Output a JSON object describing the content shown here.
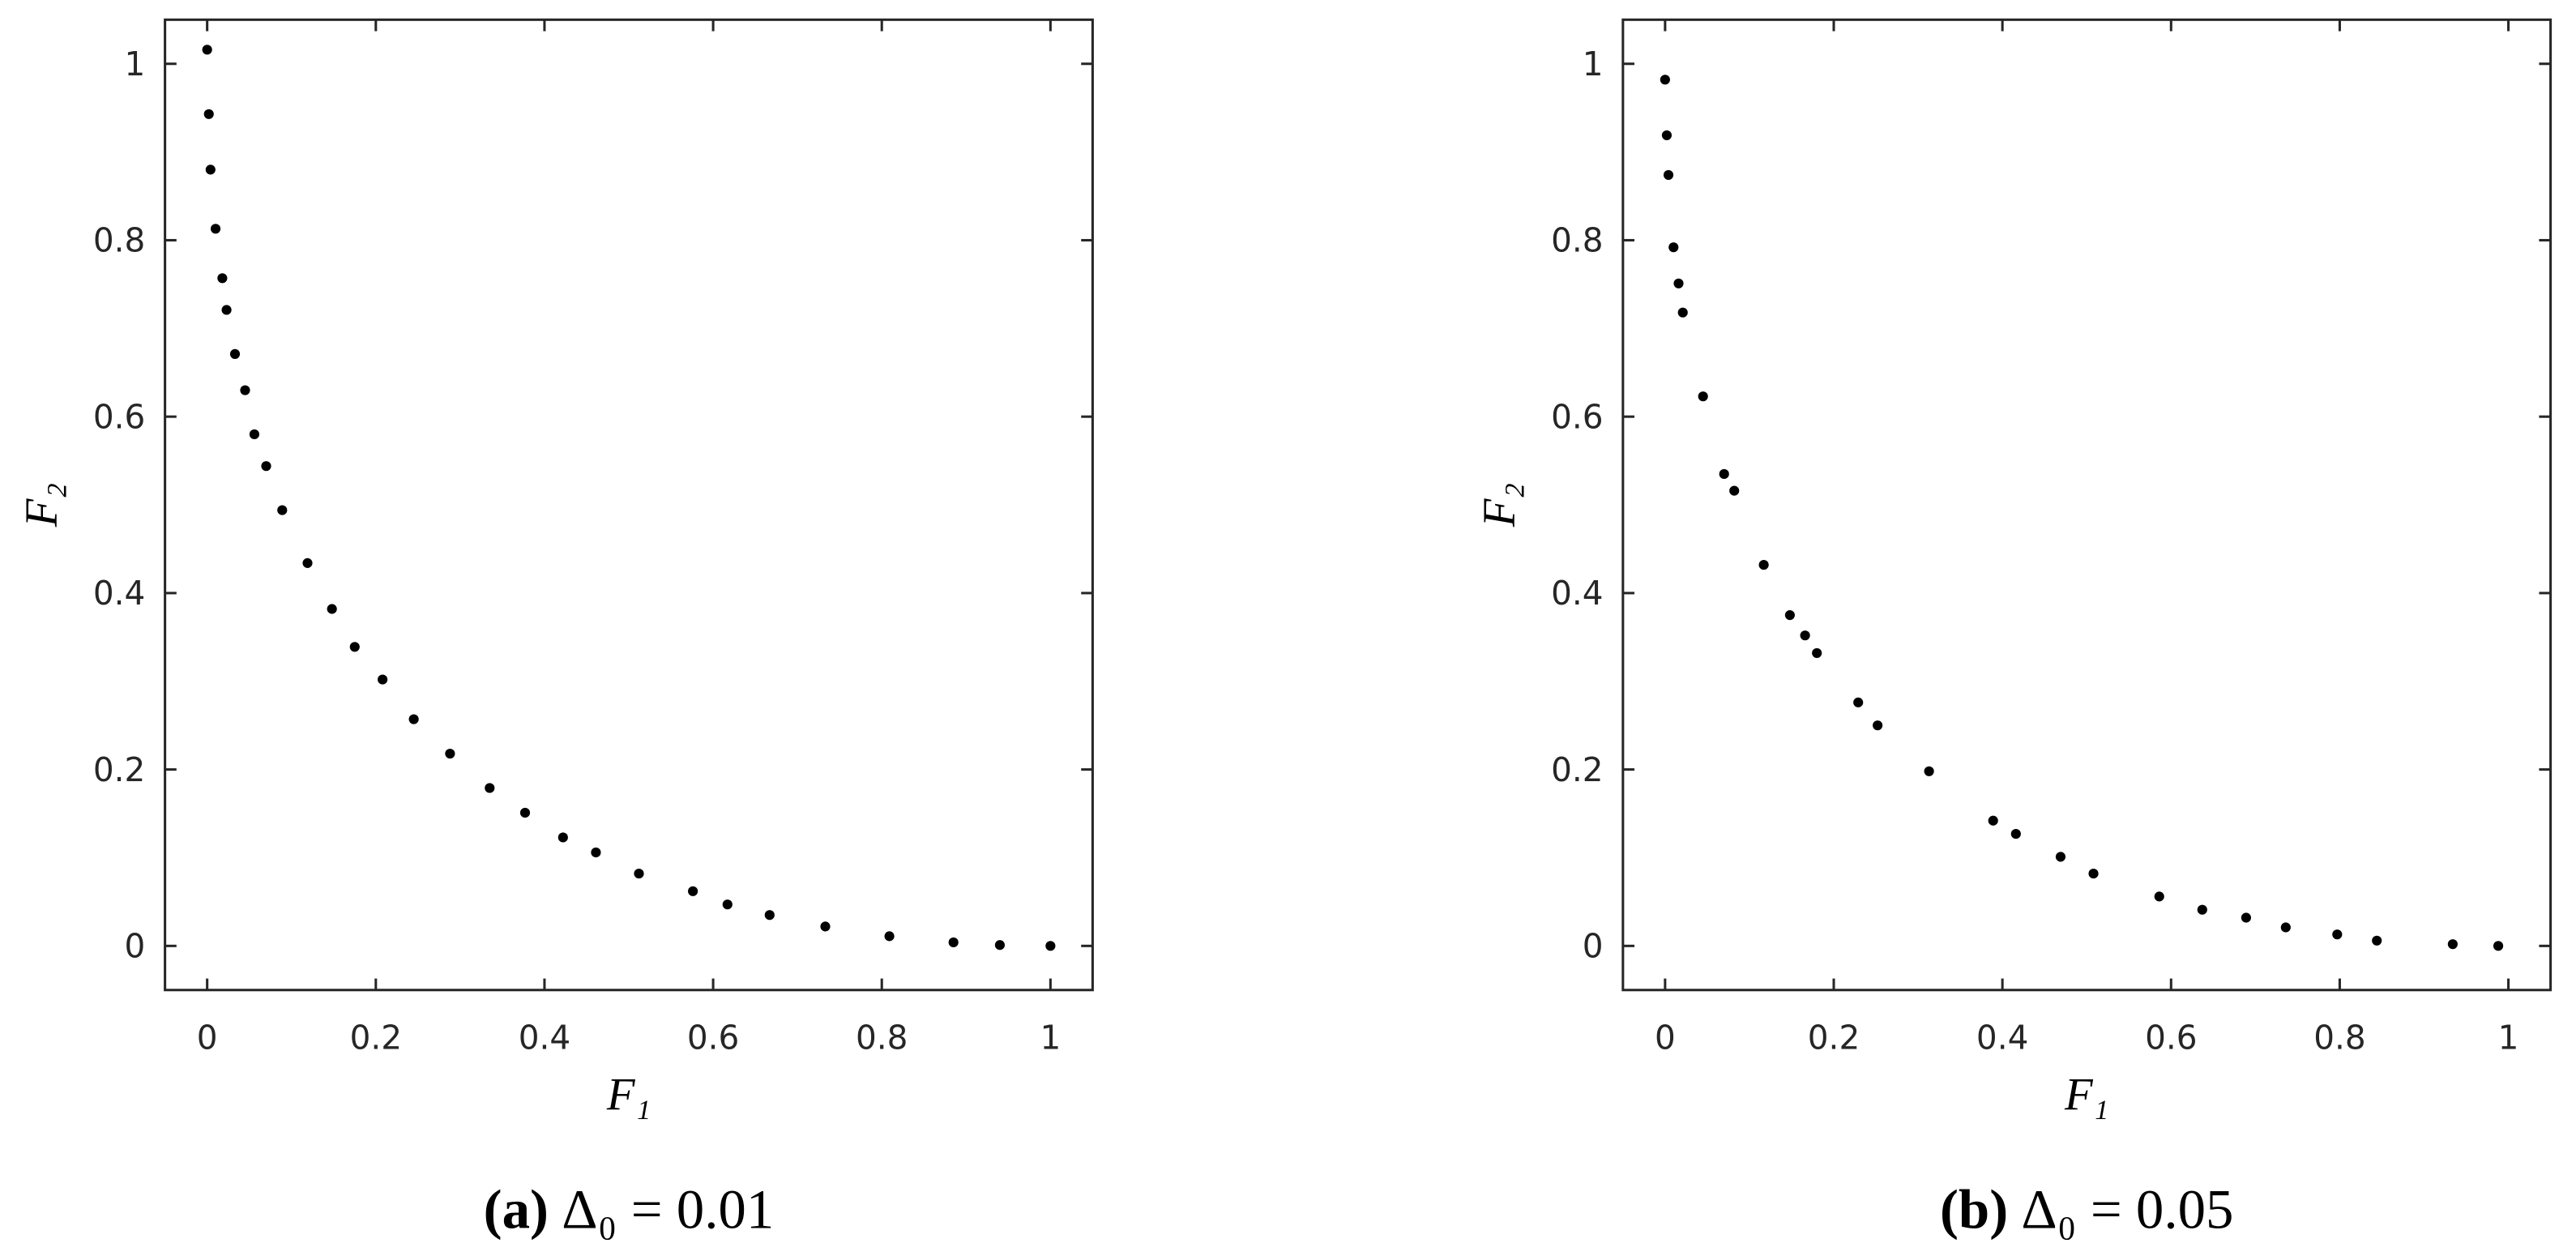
{
  "chart_data": [
    {
      "type": "scatter",
      "x_label": "F₁",
      "y_label": "F₂",
      "caption_label": "(a)",
      "caption": "Δ₀ = 0.01",
      "color": "#000000",
      "xlim": [
        -0.05,
        1.05
      ],
      "ylim": [
        -0.05,
        1.05
      ],
      "xticks": [
        0,
        0.2,
        0.4,
        0.6,
        0.8,
        1
      ],
      "yticks": [
        0,
        0.2,
        0.4,
        0.6,
        0.8,
        1
      ],
      "x": [
        0,
        0.002,
        0.004,
        0.01,
        0.018,
        0.023,
        0.033,
        0.045,
        0.056,
        0.07,
        0.089,
        0.119,
        0.148,
        0.175,
        0.208,
        0.245,
        0.288,
        0.335,
        0.377,
        0.422,
        0.461,
        0.512,
        0.576,
        0.617,
        0.667,
        0.733,
        0.809,
        0.885,
        0.94,
        1
      ],
      "values": [
        1.016,
        0.943,
        0.88,
        0.813,
        0.757,
        0.721,
        0.671,
        0.63,
        0.58,
        0.544,
        0.494,
        0.434,
        0.382,
        0.339,
        0.302,
        0.257,
        0.218,
        0.179,
        0.151,
        0.123,
        0.106,
        0.082,
        0.062,
        0.047,
        0.035,
        0.022,
        0.011,
        0.004,
        0.001,
        0
      ]
    },
    {
      "type": "scatter",
      "x_label": "F₁",
      "y_label": "F₂",
      "caption_label": "(b)",
      "caption": "Δ₀ = 0.05",
      "color": "#000000",
      "xlim": [
        -0.05,
        1.05
      ],
      "ylim": [
        -0.05,
        1.05
      ],
      "xticks": [
        0,
        0.2,
        0.4,
        0.6,
        0.8,
        1
      ],
      "yticks": [
        0,
        0.2,
        0.4,
        0.6,
        0.8,
        1
      ],
      "x": [
        0,
        0.002,
        0.004,
        0.01,
        0.016,
        0.021,
        0.045,
        0.07,
        0.082,
        0.117,
        0.148,
        0.166,
        0.18,
        0.229,
        0.252,
        0.313,
        0.389,
        0.416,
        0.469,
        0.508,
        0.586,
        0.637,
        0.689,
        0.736,
        0.797,
        0.844,
        0.934,
        0.988
      ],
      "values": [
        0.982,
        0.919,
        0.874,
        0.792,
        0.751,
        0.718,
        0.623,
        0.535,
        0.516,
        0.432,
        0.375,
        0.352,
        0.332,
        0.276,
        0.25,
        0.198,
        0.142,
        0.127,
        0.101,
        0.082,
        0.056,
        0.041,
        0.032,
        0.021,
        0.013,
        0.006,
        0.002,
        0
      ]
    }
  ]
}
